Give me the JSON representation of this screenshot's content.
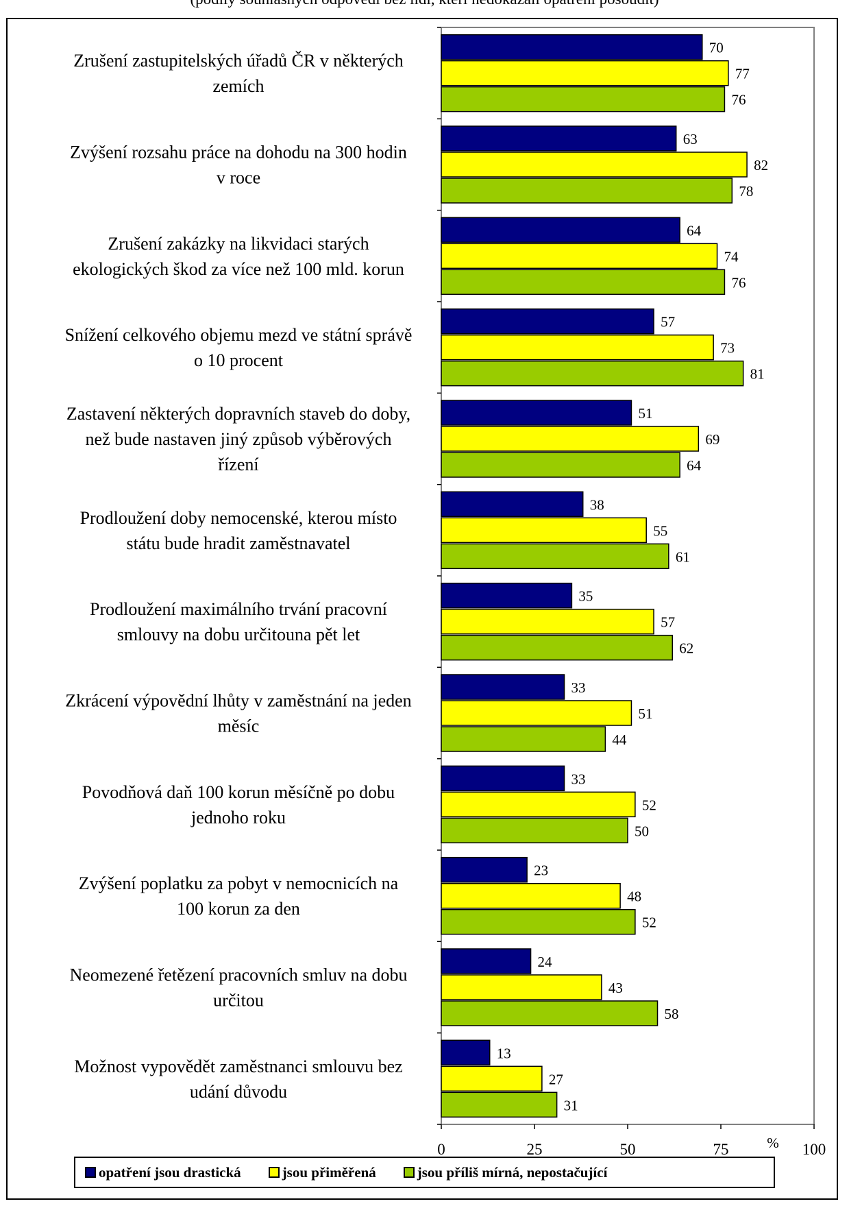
{
  "subtitle": "(podíly souhlasných odpovědí bez lidí, kteří nedokázali opatření posoudit)",
  "legend": [
    {
      "label": "opatření jsou drastická",
      "color": "#000080"
    },
    {
      "label": "jsou přiměřená",
      "color": "#ffff00"
    },
    {
      "label": "jsou příliš mírná, nepostačující",
      "color": "#99cc00"
    }
  ],
  "chart_data": {
    "type": "bar",
    "orientation": "horizontal",
    "xlim": [
      0,
      100
    ],
    "xticks": [
      "0",
      "25",
      "50",
      "75",
      "100"
    ],
    "xunit": "%",
    "grid": false,
    "legend_position": "bottom",
    "categories": [
      [
        "Zrušení zastupitelských úřadů ČR v některých",
        "zemích"
      ],
      [
        "Zvýšení rozsahu práce na dohodu na 300 hodin",
        "v roce"
      ],
      [
        "Zrušení zakázky na likvidaci starých",
        "ekologických škod za více než 100 mld. korun"
      ],
      [
        "Snížení celkového objemu mezd ve státní správě",
        "o 10 procent"
      ],
      [
        "Zastavení některých dopravních staveb do doby,",
        "než bude nastaven jiný způsob výběrových",
        "řízení"
      ],
      [
        "Prodloužení doby nemocenské, kterou místo",
        "státu bude hradit zaměstnavatel"
      ],
      [
        "Prodloužení maximálního trvání pracovní",
        "smlouvy na dobu určitouna pět let"
      ],
      [
        "Zkrácení výpovědní lhůty v zaměstnání na jeden",
        "měsíc"
      ],
      [
        "Povodňová daň 100 korun měsíčně po dobu",
        "jednoho roku"
      ],
      [
        "Zvýšení poplatku za pobyt v nemocnicích na",
        "100 korun za den"
      ],
      [
        "Neomezené řetězení pracovních smluv na dobu",
        "určitou"
      ],
      [
        "Možnost vypovědět zaměstnanci smlouvu bez",
        "udání důvodu"
      ]
    ],
    "series": [
      {
        "name": "opatření jsou drastická",
        "color": "#000080",
        "values": [
          70,
          63,
          64,
          57,
          51,
          38,
          35,
          33,
          33,
          23,
          24,
          13
        ]
      },
      {
        "name": "jsou přiměřená",
        "color": "#ffff00",
        "values": [
          77,
          82,
          74,
          73,
          69,
          55,
          57,
          51,
          52,
          48,
          43,
          27
        ]
      },
      {
        "name": "jsou příliš mírná, nepostačující",
        "color": "#99cc00",
        "values": [
          76,
          78,
          76,
          81,
          64,
          61,
          62,
          44,
          50,
          52,
          58,
          31
        ]
      }
    ]
  }
}
